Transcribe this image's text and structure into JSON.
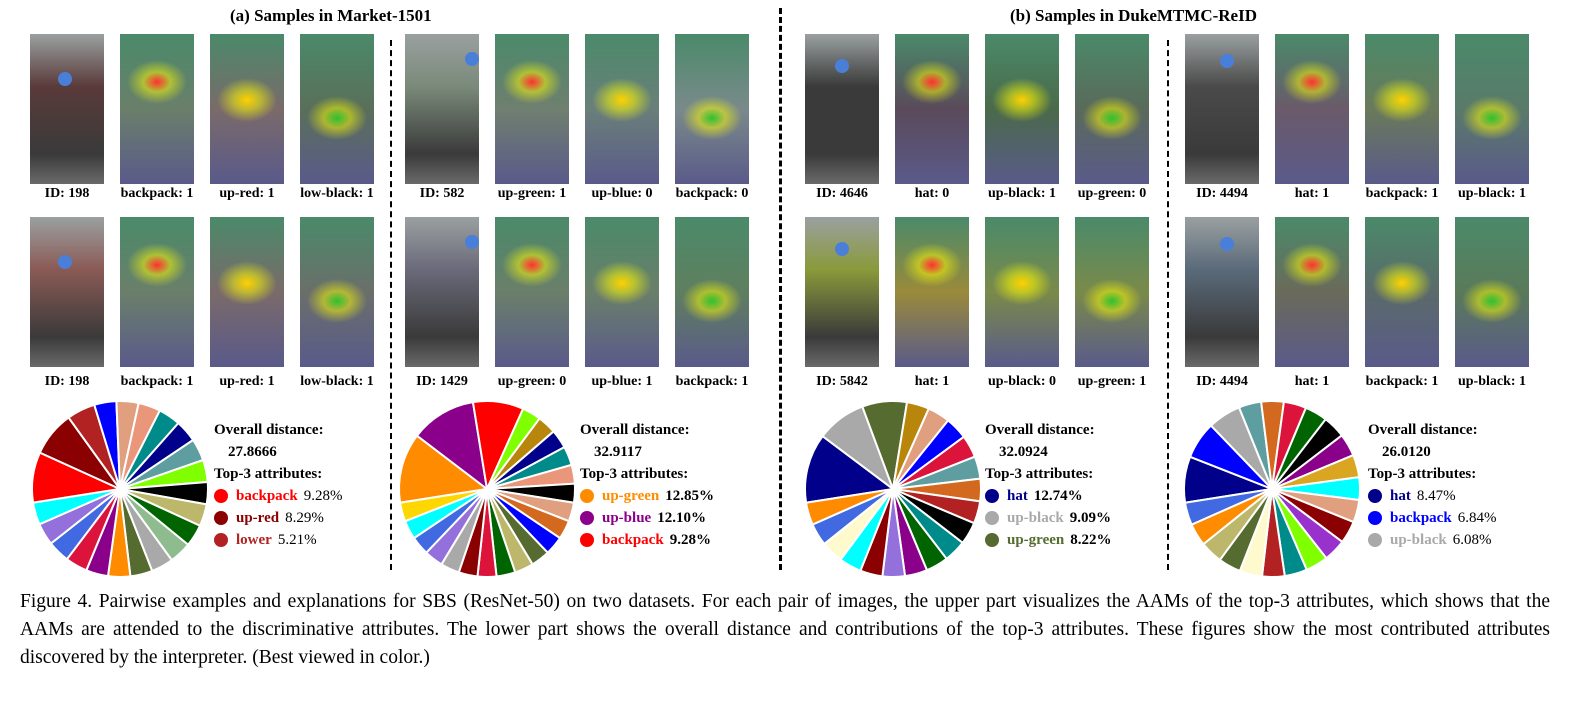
{
  "titles": {
    "a": "(a) Samples in Market-1501",
    "b": "(b) Samples in DukeMTMC-ReID"
  },
  "panels": [
    {
      "rows": [
        {
          "labels": [
            "ID: 198",
            "backpack: 1",
            "up-red: 1",
            "low-black: 1"
          ],
          "tints": [
            "#5a3a3a",
            "#6a7f6a",
            "#7a6a6a",
            "#5a6f5a"
          ]
        },
        {
          "labels": [
            "ID: 198",
            "backpack: 1",
            "up-red: 1",
            "low-black: 1"
          ],
          "tints": [
            "#8a5a55",
            "#6a7f6a",
            "#7a6a6a",
            "#6a6f6a"
          ]
        }
      ],
      "overall_label": "Overall distance:",
      "overall_value": "27.8666",
      "top_label": "Top-3 attributes:",
      "top": [
        {
          "name": "backpack",
          "pct": "9.28%",
          "color": "#ff0000",
          "bold_pct": false
        },
        {
          "name": "up-red",
          "pct": "8.29%",
          "color": "#8b0000",
          "bold_pct": false
        },
        {
          "name": "lower",
          "pct": "5.21%",
          "color": "#b22222",
          "bold_pct": false
        }
      ],
      "pie_colors": [
        "#ff0000",
        "#8b0000",
        "#b22222",
        "#0000ff",
        "#e0a080",
        "#e9967a",
        "#008b8b",
        "#00008b",
        "#5f9ea0",
        "#7fff00",
        "#000000",
        "#bdb76b",
        "#006400",
        "#8fbc8f",
        "#a9a9a9",
        "#556b2f",
        "#ff8c00",
        "#8b008b",
        "#dc143c",
        "#4169e1",
        "#9370db",
        "#00ffff"
      ]
    },
    {
      "rows": [
        {
          "labels": [
            "ID: 582",
            "up-green: 1",
            "up-blue: 0",
            "backpack: 0"
          ],
          "tints": [
            "#7a8a7a",
            "#6f7f6f",
            "#6a7f7a",
            "#7a8a8a"
          ]
        },
        {
          "labels": [
            "ID: 1429",
            "up-green: 0",
            "up-blue: 1",
            "backpack: 1"
          ],
          "tints": [
            "#6a6a7a",
            "#6a7f6a",
            "#6a7f6a",
            "#5f7f5f"
          ]
        }
      ],
      "overall_label": "Overall distance:",
      "overall_value": "32.9117",
      "top_label": "Top-3 attributes:",
      "top": [
        {
          "name": "up-green",
          "pct": "12.85%",
          "color": "#ff8c00",
          "bold_pct": true
        },
        {
          "name": "up-blue",
          "pct": "12.10%",
          "color": "#8b008b",
          "bold_pct": true
        },
        {
          "name": "backpack",
          "pct": "9.28%",
          "color": "#ff0000",
          "bold_pct": true
        }
      ],
      "pie_colors": [
        "#ff8c00",
        "#8b008b",
        "#ff0000",
        "#7fff00",
        "#b8860b",
        "#00008b",
        "#008b8b",
        "#e9967a",
        "#000000",
        "#e0a080",
        "#d2691e",
        "#0000ff",
        "#556b2f",
        "#bdb76b",
        "#006400",
        "#dc143c",
        "#8b0000",
        "#a9a9a9",
        "#9370db",
        "#4169e1",
        "#00ffff",
        "#ffd700"
      ]
    },
    {
      "rows": [
        {
          "labels": [
            "ID: 4646",
            "hat: 0",
            "up-black: 1",
            "up-green: 0"
          ],
          "tints": [
            "#3a3a3a",
            "#5a4a5a",
            "#4a6a4a",
            "#5a6a5a"
          ]
        },
        {
          "labels": [
            "ID: 5842",
            "hat: 1",
            "up-black: 0",
            "up-green: 1"
          ],
          "tints": [
            "#8a9a3a",
            "#9a8a3a",
            "#7a8a4a",
            "#7a8a4a"
          ]
        }
      ],
      "overall_label": "Overall distance:",
      "overall_value": "32.0924",
      "top_label": "Top-3 attributes:",
      "top": [
        {
          "name": "hat",
          "pct": "12.74%",
          "color": "#00008b",
          "bold_pct": true
        },
        {
          "name": "up-black",
          "pct": "9.09%",
          "color": "#a9a9a9",
          "bold_pct": true
        },
        {
          "name": "up-green",
          "pct": "8.22%",
          "color": "#556b2f",
          "bold_pct": true
        }
      ],
      "pie_colors": [
        "#00008b",
        "#a9a9a9",
        "#556b2f",
        "#b8860b",
        "#e0a080",
        "#0000ff",
        "#dc143c",
        "#5f9ea0",
        "#d2691e",
        "#b22222",
        "#000000",
        "#008b8b",
        "#006400",
        "#8b008b",
        "#9370db",
        "#8b0000",
        "#00ffff",
        "#fffacd",
        "#4169e1",
        "#ff8c00"
      ]
    },
    {
      "rows": [
        {
          "labels": [
            "ID: 4494",
            "hat: 1",
            "backpack: 1",
            "up-black: 1"
          ],
          "tints": [
            "#4a4a4a",
            "#6a5a6a",
            "#6a7a5a",
            "#5a7a6a"
          ]
        },
        {
          "labels": [
            "ID: 4494",
            "hat: 1",
            "backpack: 1",
            "up-black: 1"
          ],
          "tints": [
            "#5a6a7a",
            "#6a6a5a",
            "#5a6a6a",
            "#5a7a5a"
          ]
        }
      ],
      "overall_label": "Overall distance:",
      "overall_value": "26.0120",
      "top_label": "Top-3 attributes:",
      "top": [
        {
          "name": "hat",
          "pct": "8.47%",
          "color": "#00008b",
          "bold_pct": false
        },
        {
          "name": "backpack",
          "pct": "6.84%",
          "color": "#0000ff",
          "bold_pct": false
        },
        {
          "name": "up-black",
          "pct": "6.08%",
          "color": "#a9a9a9",
          "bold_pct": false
        }
      ],
      "pie_colors": [
        "#00008b",
        "#0000ff",
        "#a9a9a9",
        "#5f9ea0",
        "#d2691e",
        "#dc143c",
        "#006400",
        "#000000",
        "#8b008b",
        "#daa520",
        "#00ffff",
        "#e0a080",
        "#8b0000",
        "#9932cc",
        "#7fff00",
        "#008b8b",
        "#b22222",
        "#fffacd",
        "#556b2f",
        "#bdb76b",
        "#ff8c00",
        "#4169e1"
      ]
    }
  ],
  "caption": "Figure 4. Pairwise examples and explanations for SBS (ResNet-50) on two datasets. For each pair of images, the upper part visualizes the AAMs of the top-3 attributes, which shows that the AAMs are attended to the discriminative attributes. The lower part shows the overall distance and contributions of the top-3 attributes. These figures show the most contributed attributes discovered by the interpreter. (Best viewed in color.)"
}
